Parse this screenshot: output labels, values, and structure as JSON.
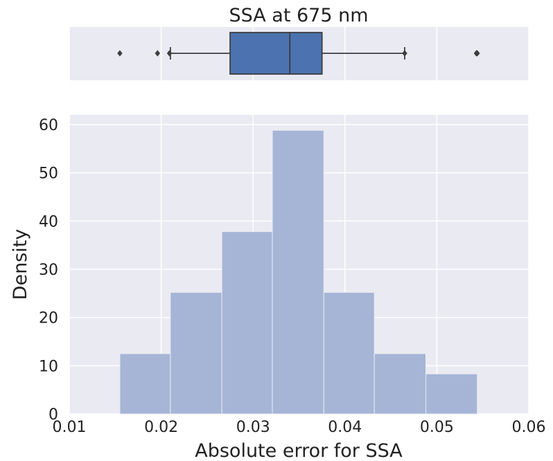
{
  "chart_data": [
    {
      "type": "box",
      "title": "SSA at 675 nm",
      "xlim": [
        0.01,
        0.06
      ],
      "grid": true,
      "box": {
        "q1": 0.0275,
        "median": 0.034,
        "q3": 0.0375,
        "whisker_low": 0.021,
        "whisker_high": 0.0465
      },
      "outliers": [
        0.0155,
        0.0196,
        0.0209,
        0.0465,
        0.0543,
        0.0544
      ],
      "colors": {
        "box_fill": "#4c72b0",
        "box_edge": "#3d3d3d",
        "background": "#eaeaf2",
        "grid": "#ffffff"
      }
    },
    {
      "type": "histogram",
      "xlabel": "Absolute error for SSA",
      "ylabel": "Density",
      "xlim": [
        0.01,
        0.06
      ],
      "ylim": [
        0,
        62
      ],
      "x_ticks": [
        "0.01",
        "0.02",
        "0.03",
        "0.04",
        "0.05",
        "0.06"
      ],
      "y_ticks": [
        "0",
        "10",
        "20",
        "30",
        "40",
        "50",
        "60"
      ],
      "grid": true,
      "bins": [
        {
          "x0": 0.0155,
          "x1": 0.021,
          "value": 12.5
        },
        {
          "x0": 0.021,
          "x1": 0.0266,
          "value": 25.2
        },
        {
          "x0": 0.0266,
          "x1": 0.0321,
          "value": 37.8
        },
        {
          "x0": 0.0321,
          "x1": 0.0377,
          "value": 58.8
        },
        {
          "x0": 0.0377,
          "x1": 0.0432,
          "value": 25.2
        },
        {
          "x0": 0.0432,
          "x1": 0.0488,
          "value": 12.5
        },
        {
          "x0": 0.0488,
          "x1": 0.0544,
          "value": 8.3
        }
      ],
      "colors": {
        "bar_fill": "#a6b5d6",
        "bar_edge": "#eaeaf2",
        "background": "#eaeaf2",
        "grid": "#ffffff"
      }
    }
  ]
}
